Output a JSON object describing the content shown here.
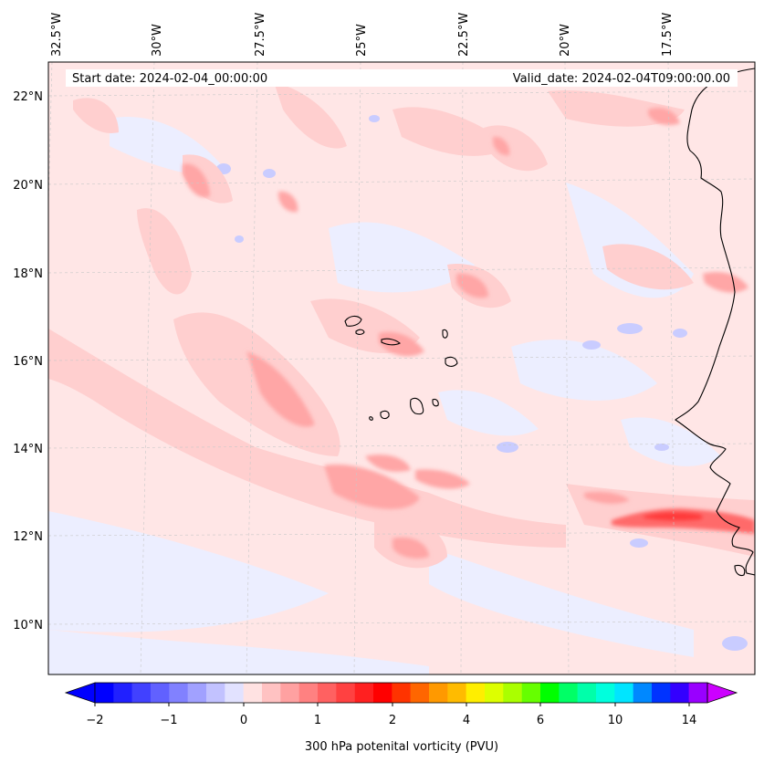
{
  "header": {
    "start_date": "Start date: 2024-02-04_00:00:00",
    "valid_date": "Valid_date: 2024-02-04T09:00:00.00"
  },
  "map": {
    "lon_labels": [
      "32.5°W",
      "30°W",
      "27.5°W",
      "25°W",
      "22.5°W",
      "20°W",
      "17.5°W"
    ],
    "lat_labels": [
      "22°N",
      "20°N",
      "18°N",
      "16°N",
      "14°N",
      "12°N",
      "10°N"
    ],
    "field": "300 hPa potenital vorticity (PVU)"
  },
  "colorbar": {
    "label": "300 hPa potenital vorticity (PVU)",
    "tick_labels": [
      "−2",
      "−1",
      "0",
      "1",
      "2",
      "4",
      "6",
      "10",
      "14"
    ],
    "colors": [
      "#0000ff",
      "#2020ff",
      "#4141ff",
      "#6161ff",
      "#8181ff",
      "#a1a1ff",
      "#c2c2ff",
      "#e2e2ff",
      "#ffe2e2",
      "#ffc2c2",
      "#ffa1a1",
      "#ff8181",
      "#ff6161",
      "#ff4141",
      "#ff2020",
      "#ff0000",
      "#ff3300",
      "#ff6600",
      "#ff9900",
      "#ffbb00",
      "#ffee00",
      "#ddff00",
      "#aaff00",
      "#66ff00",
      "#00ff00",
      "#00ff66",
      "#00ffaa",
      "#00ffdd",
      "#00e5ff",
      "#0088ff",
      "#0033ff",
      "#3300ff",
      "#9900ff"
    ],
    "under_color": "#0000ff",
    "over_color": "#cc00ff"
  }
}
